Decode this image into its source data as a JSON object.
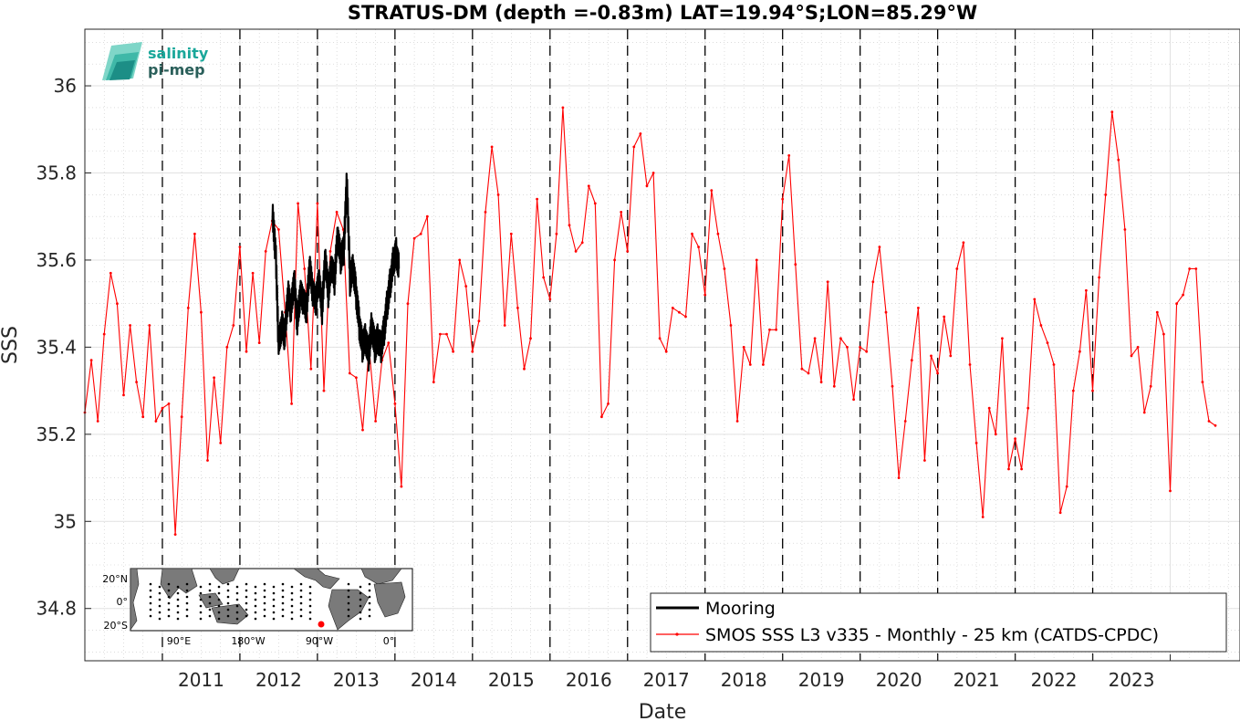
{
  "chart_data": {
    "type": "line",
    "title": "STRATUS-DM (depth =-0.83m) LAT=19.94°S;LON=85.29°W",
    "xlabel": "Date",
    "ylabel": "SSS",
    "xlim": [
      2010.0,
      2024.9
    ],
    "ylim": [
      34.68,
      36.13
    ],
    "x_tick_labels": [
      "2011",
      "2012",
      "2013",
      "2014",
      "2015",
      "2016",
      "2017",
      "2018",
      "2019",
      "2020",
      "2021",
      "2022",
      "2023"
    ],
    "y_tick_labels": [
      "34.8",
      "35",
      "35.2",
      "35.4",
      "35.6",
      "35.8",
      "36"
    ],
    "grid": true,
    "year_markers": "dashed vertical lines at each year start",
    "legend_placement": "bottom-right",
    "series": [
      {
        "name": "Mooring",
        "color": "#000000",
        "style": "thick line",
        "x": [
          2012.42,
          2012.46,
          2012.5,
          2012.54,
          2012.58,
          2012.62,
          2012.66,
          2012.7,
          2012.74,
          2012.78,
          2012.82,
          2012.86,
          2012.9,
          2012.94,
          2012.98,
          2013.02,
          2013.06,
          2013.1,
          2013.14,
          2013.18,
          2013.22,
          2013.26,
          2013.3,
          2013.34,
          2013.38,
          2013.42,
          2013.46,
          2013.5,
          2013.54,
          2013.58,
          2013.62,
          2013.66,
          2013.7,
          2013.74,
          2013.78,
          2013.82,
          2013.86,
          2013.9,
          2013.94,
          2013.98,
          2014.02,
          2014.05
        ],
        "y": [
          35.7,
          35.62,
          35.4,
          35.45,
          35.42,
          35.52,
          35.48,
          35.55,
          35.45,
          35.52,
          35.5,
          35.48,
          35.58,
          35.52,
          35.5,
          35.55,
          35.48,
          35.6,
          35.52,
          35.58,
          35.55,
          35.65,
          35.6,
          35.62,
          35.78,
          35.55,
          35.58,
          35.52,
          35.45,
          35.4,
          35.42,
          35.38,
          35.45,
          35.4,
          35.42,
          35.4,
          35.44,
          35.5,
          35.55,
          35.6,
          35.62,
          35.58
        ]
      },
      {
        "name": "SMOS SSS L3 v335 - Monthly - 25 km (CATDS-CPDC)",
        "color": "#ff0000",
        "style": "thin line with dots",
        "x_start": 2010.0,
        "x_step": 0.08333,
        "values": [
          35.25,
          35.37,
          35.23,
          35.43,
          35.57,
          35.5,
          35.29,
          35.45,
          35.32,
          35.24,
          35.45,
          35.23,
          35.26,
          35.27,
          34.97,
          35.24,
          35.49,
          35.66,
          35.48,
          35.14,
          35.33,
          35.18,
          35.4,
          35.45,
          35.63,
          35.39,
          35.57,
          35.41,
          35.62,
          35.69,
          35.67,
          35.48,
          35.27,
          35.73,
          35.58,
          35.35,
          35.73,
          35.3,
          35.62,
          35.71,
          35.67,
          35.34,
          35.33,
          35.21,
          35.4,
          35.23,
          35.37,
          35.41,
          35.27,
          35.08,
          35.5,
          35.65,
          35.66,
          35.7,
          35.32,
          35.43,
          35.43,
          35.39,
          35.6,
          35.54,
          35.39,
          35.46,
          35.71,
          35.86,
          35.75,
          35.45,
          35.66,
          35.49,
          35.35,
          35.42,
          35.74,
          35.56,
          35.51,
          35.66,
          35.95,
          35.68,
          35.62,
          35.64,
          35.77,
          35.73,
          35.24,
          35.27,
          35.6,
          35.71,
          35.62,
          35.86,
          35.89,
          35.77,
          35.8,
          35.42,
          35.39,
          35.49,
          35.48,
          35.47,
          35.66,
          35.63,
          35.52,
          35.76,
          35.66,
          35.58,
          35.45,
          35.23,
          35.4,
          35.36,
          35.6,
          35.36,
          35.44,
          35.44,
          35.74,
          35.84,
          35.59,
          35.35,
          35.34,
          35.42,
          35.32,
          35.55,
          35.31,
          35.42,
          35.4,
          35.28,
          35.4,
          35.39,
          35.55,
          35.63,
          35.48,
          35.31,
          35.1,
          35.23,
          35.37,
          35.49,
          35.14,
          35.38,
          35.34,
          35.47,
          35.38,
          35.58,
          35.64,
          35.36,
          35.18,
          35.01,
          35.26,
          35.2,
          35.42,
          35.12,
          35.19,
          35.12,
          35.26,
          35.51,
          35.45,
          35.41,
          35.36,
          35.02,
          35.08,
          35.3,
          35.39,
          35.53,
          35.3,
          35.56,
          35.75,
          35.94,
          35.83,
          35.67,
          35.38,
          35.4,
          35.25,
          35.31,
          35.48,
          35.43,
          35.07,
          35.5,
          35.52,
          35.58,
          35.58,
          35.32,
          35.23,
          35.22
        ]
      }
    ]
  },
  "logo": {
    "line1": "salinity",
    "line2": "pi-mep",
    "colors": [
      "#1aa79a",
      "#2a5f5a"
    ]
  },
  "inset_map": {
    "lat_labels": [
      "20°N",
      "0°",
      "20°S"
    ],
    "lon_labels": [
      "90°E",
      "180°W",
      "90°W",
      "0°"
    ],
    "marker_color": "#ff0000"
  }
}
